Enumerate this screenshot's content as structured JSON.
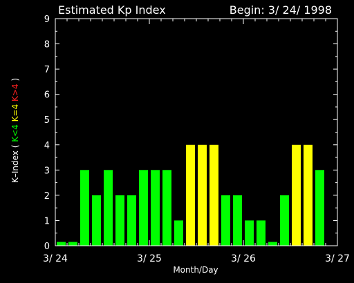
{
  "chart_data": {
    "type": "bar",
    "title": "Estimated Kp Index",
    "subtitle": "Begin: 3/ 24/ 1998",
    "xlabel": "Month/Day",
    "ylabel_parts": [
      {
        "text": "K–Index (",
        "color": "#ffffff"
      },
      {
        "text": "K<4",
        "color": "#00ff00"
      },
      {
        "text": "K=4",
        "color": "#ffff00"
      },
      {
        "text": "K>4",
        "color": "#ff2020"
      },
      {
        "text": ")",
        "color": "#ffffff"
      }
    ],
    "ylim": [
      0,
      9
    ],
    "yticks": [
      0,
      1,
      2,
      3,
      4,
      5,
      6,
      7,
      8,
      9
    ],
    "xlim": [
      0,
      24
    ],
    "xticks": [
      {
        "x": 0,
        "label": "3/ 24"
      },
      {
        "x": 8,
        "label": "3/ 25"
      },
      {
        "x": 16,
        "label": "3/ 26"
      },
      {
        "x": 24,
        "label": "3/ 27"
      }
    ],
    "values": [
      0.15,
      0.15,
      3,
      2,
      3,
      2,
      2,
      3,
      3,
      3,
      1,
      4,
      4,
      4,
      2,
      2,
      1,
      1,
      0.15,
      2,
      4,
      4,
      3
    ],
    "colors": {
      "low": "#00ff00",
      "equal": "#ffff00",
      "high": "#ff2020",
      "axis": "#ffffff",
      "background": "#000000"
    }
  }
}
